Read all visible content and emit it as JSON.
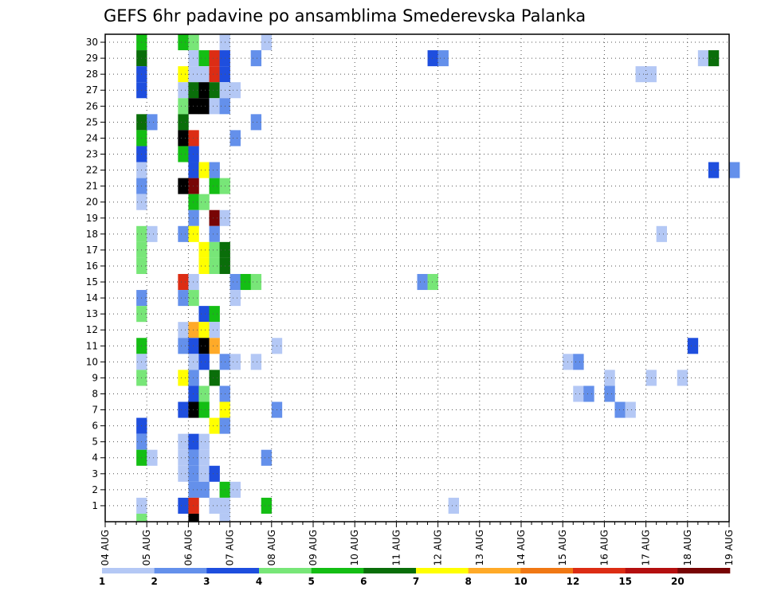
{
  "chart_data": {
    "type": "heatmap",
    "title": "GEFS 6hr padavine po ansamblima Smederevska Palanka",
    "xlabel": "",
    "ylabel": "",
    "x_tick_labels": [
      "04 AUG",
      "05 AUG",
      "06 AUG",
      "07 AUG",
      "08 AUG",
      "09 AUG",
      "10 AUG",
      "11 AUG",
      "12 AUG",
      "13 AUG",
      "14 AUG",
      "15 AUG",
      "16 AUG",
      "17 AUG",
      "18 AUG",
      "19 AUG"
    ],
    "y_tick_labels": [
      "1",
      "2",
      "3",
      "4",
      "5",
      "6",
      "7",
      "8",
      "9",
      "10",
      "11",
      "12",
      "13",
      "14",
      "15",
      "16",
      "17",
      "18",
      "19",
      "20",
      "21",
      "22",
      "23",
      "24",
      "25",
      "26",
      "27",
      "28",
      "29",
      "30"
    ],
    "time_step_hours": 6,
    "members": 30,
    "grid": true,
    "colorbar": {
      "labels": [
        "1",
        "2",
        "3",
        "4",
        "5",
        "6",
        "7",
        "8",
        "10",
        "12",
        "15",
        "20"
      ],
      "colors": [
        "#b4c8f5",
        "#6490eb",
        "#1e4ede",
        "#78e678",
        "#14be14",
        "#0a6e0a",
        "#ffff00",
        "#ffaa28",
        "#f07814",
        "#dc2d14",
        "#b40f0f",
        "#780505"
      ]
    },
    "cells": [
      {
        "m": 30,
        "c": [
          [
            3,
            5
          ],
          [
            7,
            5
          ],
          [
            8,
            4
          ],
          [
            11,
            1
          ],
          [
            15,
            1
          ]
        ]
      },
      {
        "m": 29,
        "c": [
          [
            3,
            6
          ],
          [
            8,
            1
          ],
          [
            9,
            5
          ],
          [
            10,
            10
          ],
          [
            11,
            3
          ],
          [
            14,
            2
          ],
          [
            31,
            3
          ],
          [
            32,
            2
          ],
          [
            57,
            1
          ],
          [
            58,
            6
          ]
        ]
      },
      {
        "m": 28,
        "c": [
          [
            3,
            3
          ],
          [
            7,
            7
          ],
          [
            8,
            1
          ],
          [
            9,
            1
          ],
          [
            10,
            10
          ],
          [
            11,
            3
          ],
          [
            51,
            1
          ],
          [
            52,
            1
          ]
        ]
      },
      {
        "m": 27,
        "c": [
          [
            3,
            3
          ],
          [
            7,
            1
          ],
          [
            8,
            6
          ],
          [
            9,
            15
          ],
          [
            10,
            6
          ],
          [
            11,
            1
          ],
          [
            12,
            1
          ]
        ]
      },
      {
        "m": 26,
        "c": [
          [
            7,
            4
          ],
          [
            8,
            20
          ],
          [
            9,
            20
          ],
          [
            10,
            1
          ],
          [
            11,
            2
          ]
        ]
      },
      {
        "m": 25,
        "c": [
          [
            3,
            6
          ],
          [
            4,
            2
          ],
          [
            7,
            6
          ],
          [
            14,
            2
          ]
        ]
      },
      {
        "m": 24,
        "c": [
          [
            3,
            5
          ],
          [
            7,
            15
          ],
          [
            8,
            10
          ],
          [
            12,
            2
          ]
        ]
      },
      {
        "m": 23,
        "c": [
          [
            3,
            3
          ],
          [
            7,
            5
          ],
          [
            8,
            3
          ]
        ]
      },
      {
        "m": 22,
        "c": [
          [
            3,
            1
          ],
          [
            8,
            3
          ],
          [
            9,
            7
          ],
          [
            10,
            2
          ],
          [
            58,
            3
          ],
          [
            60,
            2
          ]
        ]
      },
      {
        "m": 21,
        "c": [
          [
            3,
            2
          ],
          [
            7,
            15
          ],
          [
            8,
            12
          ],
          [
            10,
            5
          ],
          [
            11,
            4
          ]
        ]
      },
      {
        "m": 20,
        "c": [
          [
            3,
            1
          ],
          [
            8,
            5
          ],
          [
            9,
            4
          ]
        ]
      },
      {
        "m": 19,
        "c": [
          [
            8,
            2
          ],
          [
            10,
            12
          ],
          [
            11,
            1
          ]
        ]
      },
      {
        "m": 18,
        "c": [
          [
            3,
            4
          ],
          [
            4,
            1
          ],
          [
            7,
            2
          ],
          [
            8,
            7
          ],
          [
            10,
            2
          ],
          [
            53,
            1
          ]
        ]
      },
      {
        "m": 17,
        "c": [
          [
            3,
            4
          ],
          [
            9,
            7
          ],
          [
            10,
            4
          ],
          [
            11,
            6
          ]
        ]
      },
      {
        "m": 16,
        "c": [
          [
            3,
            4
          ],
          [
            9,
            7
          ],
          [
            10,
            4
          ],
          [
            11,
            6
          ]
        ]
      },
      {
        "m": 15,
        "c": [
          [
            7,
            10
          ],
          [
            8,
            1
          ],
          [
            12,
            2
          ],
          [
            13,
            5
          ],
          [
            14,
            4
          ],
          [
            30,
            2
          ],
          [
            31,
            4
          ]
        ]
      },
      {
        "m": 14,
        "c": [
          [
            3,
            2
          ],
          [
            7,
            2
          ],
          [
            8,
            4
          ],
          [
            12,
            1
          ]
        ]
      },
      {
        "m": 13,
        "c": [
          [
            3,
            4
          ],
          [
            9,
            3
          ],
          [
            10,
            5
          ]
        ]
      },
      {
        "m": 12,
        "c": [
          [
            7,
            1
          ],
          [
            8,
            8
          ],
          [
            9,
            7
          ],
          [
            10,
            1
          ]
        ]
      },
      {
        "m": 11,
        "c": [
          [
            3,
            5
          ],
          [
            7,
            2
          ],
          [
            8,
            3
          ],
          [
            9,
            20
          ],
          [
            10,
            8
          ],
          [
            16,
            1
          ],
          [
            56,
            3
          ]
        ]
      },
      {
        "m": 10,
        "c": [
          [
            3,
            1
          ],
          [
            8,
            1
          ],
          [
            9,
            3
          ],
          [
            11,
            2
          ],
          [
            12,
            1
          ],
          [
            14,
            1
          ],
          [
            44,
            1
          ],
          [
            45,
            2
          ]
        ]
      },
      {
        "m": 9,
        "c": [
          [
            3,
            4
          ],
          [
            7,
            7
          ],
          [
            8,
            2
          ],
          [
            10,
            6
          ],
          [
            48,
            1
          ],
          [
            52,
            1
          ],
          [
            55,
            1
          ]
        ]
      },
      {
        "m": 8,
        "c": [
          [
            8,
            3
          ],
          [
            9,
            4
          ],
          [
            11,
            2
          ],
          [
            45,
            1
          ],
          [
            46,
            2
          ],
          [
            48,
            2
          ]
        ]
      },
      {
        "m": 7,
        "c": [
          [
            7,
            3
          ],
          [
            8,
            15
          ],
          [
            9,
            5
          ],
          [
            11,
            7
          ],
          [
            16,
            2
          ],
          [
            49,
            2
          ],
          [
            50,
            1
          ]
        ]
      },
      {
        "m": 6,
        "c": [
          [
            3,
            3
          ],
          [
            10,
            7
          ],
          [
            11,
            2
          ]
        ]
      },
      {
        "m": 5,
        "c": [
          [
            3,
            2
          ],
          [
            7,
            1
          ],
          [
            8,
            3
          ],
          [
            9,
            1
          ]
        ]
      },
      {
        "m": 4,
        "c": [
          [
            3,
            5
          ],
          [
            4,
            1
          ],
          [
            7,
            1
          ],
          [
            8,
            2
          ],
          [
            9,
            1
          ],
          [
            15,
            2
          ]
        ]
      },
      {
        "m": 3,
        "c": [
          [
            7,
            1
          ],
          [
            8,
            2
          ],
          [
            9,
            1
          ],
          [
            10,
            3
          ]
        ]
      },
      {
        "m": 2,
        "c": [
          [
            8,
            2
          ],
          [
            9,
            2
          ],
          [
            11,
            5
          ],
          [
            12,
            1
          ]
        ]
      },
      {
        "m": 1,
        "c": [
          [
            3,
            1
          ],
          [
            7,
            3
          ],
          [
            8,
            10
          ],
          [
            10,
            1
          ],
          [
            11,
            1
          ],
          [
            15,
            5
          ],
          [
            33,
            1
          ]
        ]
      },
      {
        "m": 0,
        "c": [
          [
            3,
            4
          ],
          [
            8,
            15
          ],
          [
            11,
            1
          ]
        ]
      }
    ]
  }
}
